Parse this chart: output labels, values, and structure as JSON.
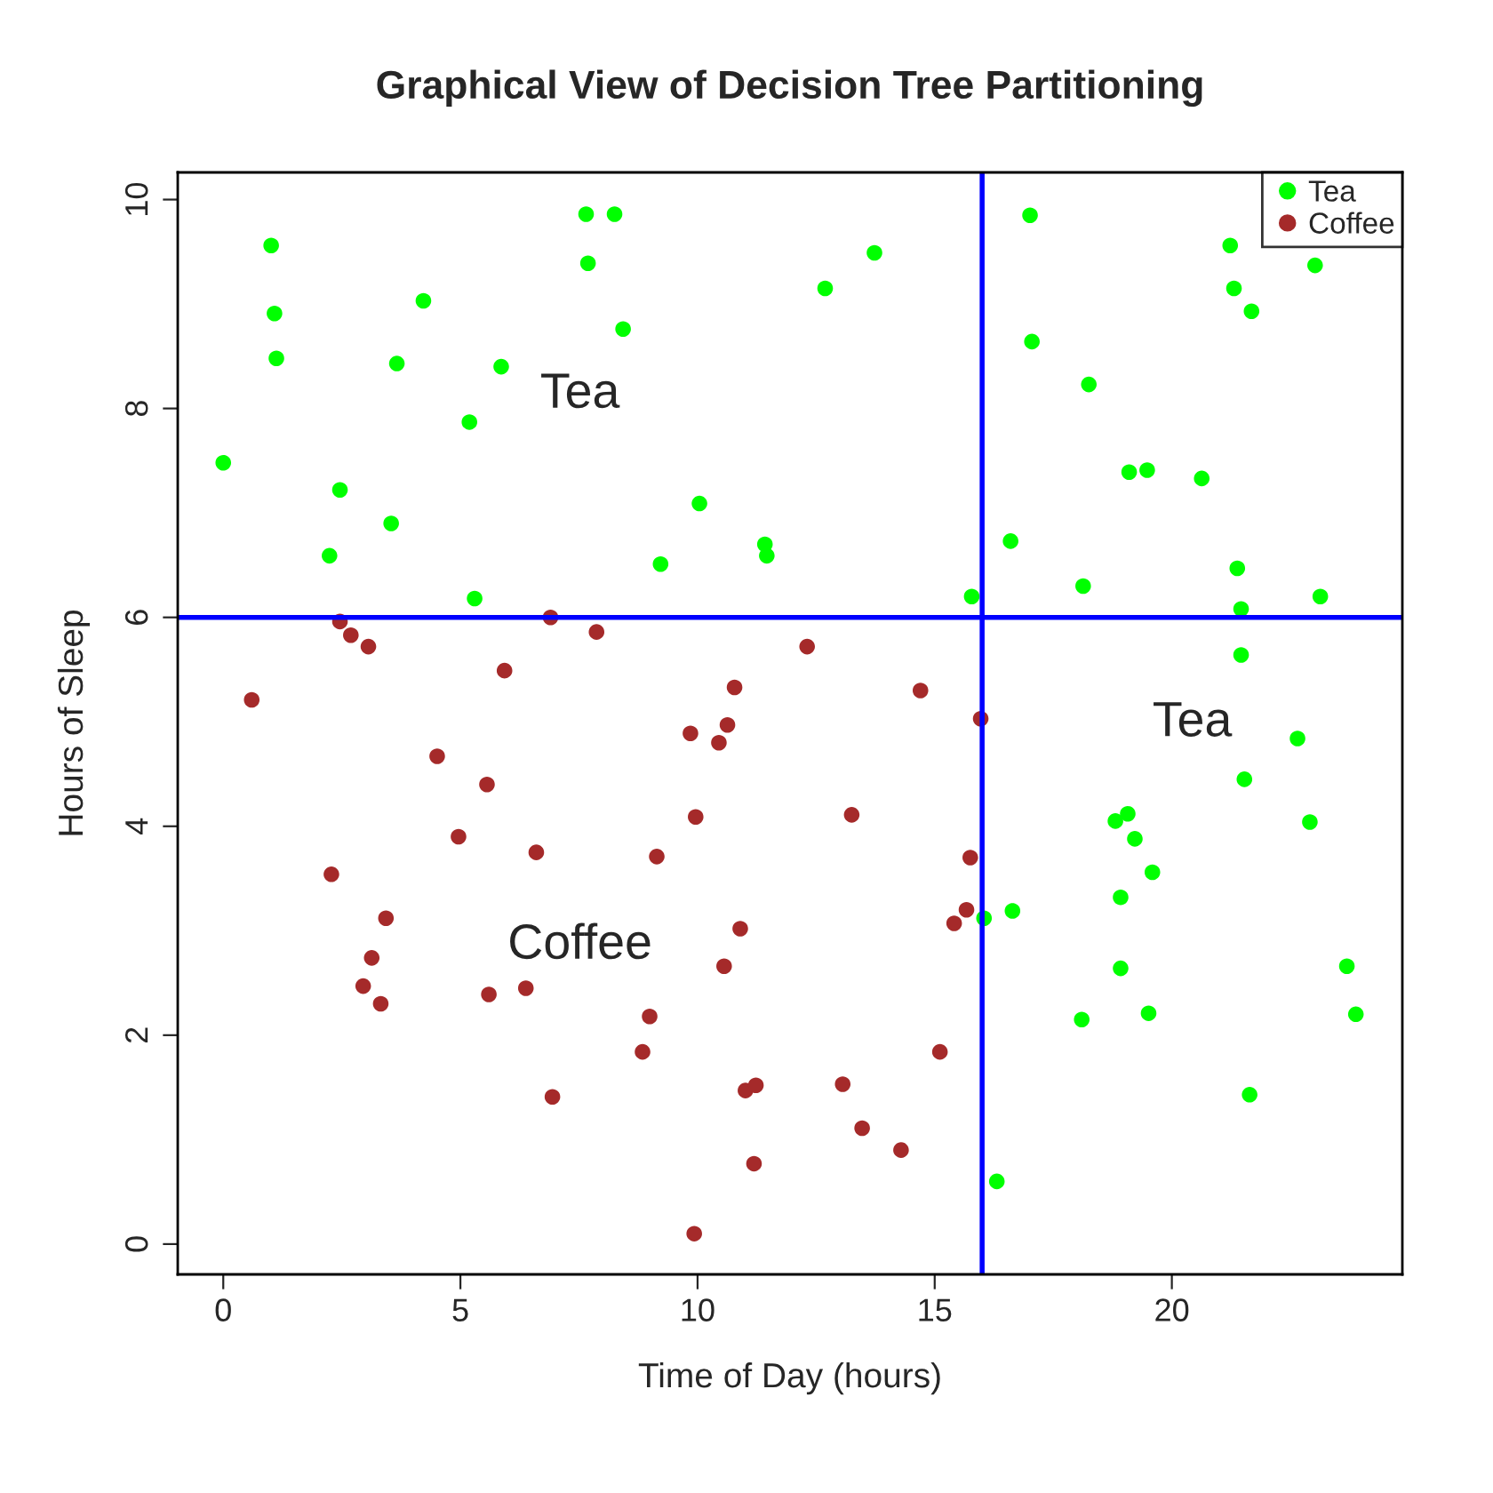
{
  "chart_data": {
    "type": "scatter",
    "title": "Graphical View of Decision Tree Partitioning",
    "xlabel": "Time of Day (hours)",
    "ylabel": "Hours of Sleep",
    "xlim": [
      -0.96,
      24.86
    ],
    "ylim": [
      -0.29,
      10.26
    ],
    "xticks": [
      0,
      5,
      10,
      15,
      20
    ],
    "yticks": [
      0,
      2,
      4,
      6,
      8,
      10
    ],
    "grid": false,
    "legend": "top right",
    "marker": "circle",
    "series": [
      {
        "name": "Tea",
        "color": "#00ff00",
        "x": [
          0,
          1.01,
          1.08,
          1.12,
          2.46,
          2.24,
          3.54,
          3.66,
          4.22,
          5.19,
          5.3,
          5.86,
          7.65,
          7.69,
          8.25,
          8.43,
          9.22,
          10.04,
          11.42,
          11.46,
          12.69,
          13.73,
          15.78,
          16.04,
          16.31,
          16.6,
          16.64,
          17.01,
          17.05,
          18.1,
          18.13,
          18.25,
          18.81,
          18.92,
          18.92,
          19.1,
          19.07,
          19.22,
          19.48,
          19.51,
          19.59,
          20.63,
          21.23,
          21.31,
          21.38,
          21.46,
          21.46,
          21.53,
          21.64,
          21.68,
          22.65,
          22.91,
          23.02,
          23.13,
          23.69,
          23.88
        ],
        "values": [
          7.48,
          9.56,
          8.91,
          8.48,
          7.22,
          6.59,
          6.9,
          8.43,
          9.03,
          7.87,
          6.18,
          8.4,
          9.86,
          9.39,
          9.86,
          8.76,
          6.51,
          7.09,
          6.7,
          6.59,
          9.15,
          9.49,
          6.2,
          3.12,
          0.6,
          6.73,
          3.19,
          9.85,
          8.64,
          2.15,
          6.3,
          8.23,
          4.05,
          3.32,
          2.64,
          7.39,
          4.12,
          3.88,
          7.41,
          2.21,
          3.56,
          7.33,
          9.56,
          9.15,
          6.47,
          6.08,
          5.64,
          4.45,
          1.43,
          8.93,
          4.84,
          4.04,
          9.37,
          6.2,
          2.66,
          2.2
        ]
      },
      {
        "name": "Coffee",
        "color": "#a52a2a",
        "x": [
          0.6,
          2.28,
          2.46,
          2.69,
          2.95,
          3.06,
          3.13,
          3.32,
          3.43,
          4.51,
          4.96,
          5.56,
          5.6,
          5.93,
          6.38,
          6.6,
          6.9,
          6.94,
          7.87,
          8.84,
          8.99,
          9.14,
          9.85,
          9.93,
          9.96,
          10.45,
          10.56,
          10.63,
          10.78,
          10.9,
          11.01,
          11.23,
          11.19,
          12.31,
          13.06,
          13.25,
          13.47,
          14.29,
          14.7,
          15.11,
          15.41,
          15.67,
          15.75,
          15.97
        ],
        "values": [
          5.21,
          3.54,
          5.96,
          5.83,
          2.47,
          5.72,
          2.74,
          2.3,
          3.12,
          4.67,
          3.9,
          4.4,
          2.39,
          5.49,
          2.45,
          3.75,
          6.0,
          1.41,
          5.86,
          1.84,
          2.18,
          3.71,
          4.89,
          0.1,
          4.09,
          4.8,
          2.66,
          4.97,
          5.33,
          3.02,
          1.47,
          1.52,
          0.77,
          5.72,
          1.53,
          4.11,
          1.11,
          0.9,
          5.3,
          1.84,
          3.07,
          3.2,
          3.7,
          5.03
        ]
      }
    ],
    "ref_lines": [
      {
        "axis": "x",
        "value": 16,
        "color": "#0000ff",
        "line_style": "solid"
      },
      {
        "axis": "y",
        "value": 6,
        "color": "#0000ff",
        "line_style": "solid"
      }
    ],
    "annotations": [
      "Tea",
      "Tea",
      "Coffee"
    ]
  }
}
